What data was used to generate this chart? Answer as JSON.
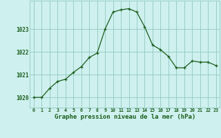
{
  "hours": [
    0,
    1,
    2,
    3,
    4,
    5,
    6,
    7,
    8,
    9,
    10,
    11,
    12,
    13,
    14,
    15,
    16,
    17,
    18,
    19,
    20,
    21,
    22,
    23
  ],
  "pressure": [
    1020.0,
    1020.0,
    1020.4,
    1020.7,
    1020.8,
    1021.1,
    1021.35,
    1021.75,
    1021.95,
    1023.0,
    1023.75,
    1023.85,
    1023.9,
    1023.75,
    1023.1,
    1022.3,
    1022.1,
    1021.8,
    1021.3,
    1021.3,
    1021.6,
    1021.55,
    1021.55,
    1021.4
  ],
  "bg_color": "#cef0ee",
  "line_color": "#1a5c1a",
  "marker_color": "#1a5c1a",
  "grid_color": "#90c8c0",
  "tick_color": "#1a5c1a",
  "ylabel_ticks": [
    1020,
    1021,
    1022,
    1023
  ],
  "xlabel": "Graphe pression niveau de la mer (hPa)",
  "ylim": [
    1019.55,
    1024.25
  ],
  "xlim": [
    -0.5,
    23.5
  ]
}
